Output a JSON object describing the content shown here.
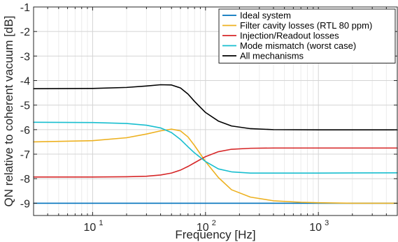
{
  "chart_data": {
    "type": "line",
    "title": "",
    "xlabel": "Frequency [Hz]",
    "ylabel": "QN relative to coherent vacuum [dB]",
    "xscale": "log",
    "xlim": [
      3,
      5000
    ],
    "ylim": [
      -9.5,
      -1
    ],
    "x_ticks": [
      10,
      100,
      1000
    ],
    "x_tick_labels": [
      {
        "base": "10",
        "exp": "1"
      },
      {
        "base": "10",
        "exp": "2"
      },
      {
        "base": "10",
        "exp": "3"
      }
    ],
    "y_ticks": [
      -9,
      -8,
      -7,
      -6,
      -5,
      -4,
      -3,
      -2,
      -1
    ],
    "y_tick_labels": [
      "-9",
      "-8",
      "-7",
      "-6",
      "-5",
      "-4",
      "-3",
      "-2",
      "-1"
    ],
    "grid": true,
    "legend_position": "top-right",
    "series": [
      {
        "name": "Ideal system",
        "color": "#0072bd",
        "x": [
          3,
          10,
          30,
          100,
          300,
          1000,
          5000
        ],
        "y": [
          -9.0,
          -9.0,
          -9.0,
          -9.0,
          -9.0,
          -9.0,
          -9.0
        ]
      },
      {
        "name": "Filter cavity losses (RTL 80 ppm)",
        "color": "#edb120",
        "x": [
          3,
          10,
          20,
          30,
          40,
          50,
          60,
          70,
          80,
          100,
          130,
          170,
          250,
          400,
          700,
          1000,
          2000,
          5000
        ],
        "y": [
          -6.5,
          -6.45,
          -6.33,
          -6.18,
          -6.05,
          -5.98,
          -6.05,
          -6.3,
          -6.65,
          -7.3,
          -7.95,
          -8.45,
          -8.75,
          -8.9,
          -8.96,
          -8.98,
          -9.0,
          -9.0
        ]
      },
      {
        "name": "Injection/Readout losses",
        "color": "#d62728",
        "x": [
          3,
          10,
          20,
          30,
          40,
          50,
          60,
          70,
          80,
          100,
          130,
          170,
          250,
          400,
          1000,
          5000
        ],
        "y": [
          -7.93,
          -7.93,
          -7.92,
          -7.9,
          -7.85,
          -7.77,
          -7.65,
          -7.5,
          -7.35,
          -7.1,
          -6.9,
          -6.8,
          -6.76,
          -6.75,
          -6.75,
          -6.75
        ]
      },
      {
        "name": "Mode mismatch (worst case)",
        "color": "#17becf",
        "x": [
          3,
          10,
          20,
          30,
          40,
          50,
          60,
          70,
          80,
          100,
          130,
          170,
          250,
          400,
          1000,
          5000
        ],
        "y": [
          -5.7,
          -5.71,
          -5.75,
          -5.82,
          -5.93,
          -6.12,
          -6.4,
          -6.7,
          -6.95,
          -7.3,
          -7.6,
          -7.72,
          -7.77,
          -7.77,
          -7.77,
          -7.76
        ]
      },
      {
        "name": "All mechanisms",
        "color": "#000000",
        "x": [
          3,
          10,
          20,
          30,
          40,
          50,
          60,
          70,
          80,
          100,
          130,
          170,
          250,
          400,
          1000,
          5000
        ],
        "y": [
          -4.33,
          -4.32,
          -4.28,
          -4.22,
          -4.17,
          -4.18,
          -4.3,
          -4.55,
          -4.85,
          -5.3,
          -5.65,
          -5.85,
          -5.96,
          -6.0,
          -6.01,
          -6.01
        ]
      }
    ]
  }
}
